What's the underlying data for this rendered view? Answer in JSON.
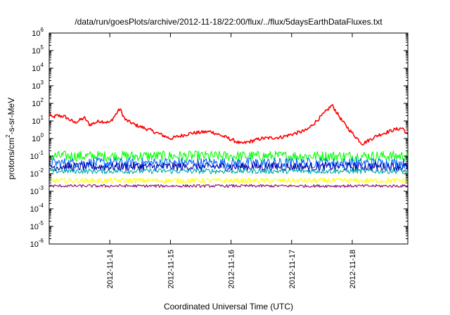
{
  "chart_data": {
    "type": "line",
    "title": "/data/run/goesPlots/archive/2012-11-18/22:00/flux/../flux/5daysEarthDataFluxes.txt",
    "xlabel": "Coordinated Universal Time (UTC)",
    "ylabel": "protons/cm2-s-sr-MeV",
    "ylabel_parts": {
      "pre": "protons/cm",
      "sup": "2",
      "post": "-s-sr-MeV"
    },
    "y_scale": "log",
    "ylim": [
      1e-06,
      1000000.0
    ],
    "y_ticks": [
      {
        "value": 1e-06,
        "base": "10",
        "exp": "-6"
      },
      {
        "value": 1e-05,
        "base": "10",
        "exp": "-5"
      },
      {
        "value": 0.0001,
        "base": "10",
        "exp": "-4"
      },
      {
        "value": 0.001,
        "base": "10",
        "exp": "-3"
      },
      {
        "value": 0.01,
        "base": "10",
        "exp": "-2"
      },
      {
        "value": 0.1,
        "base": "10",
        "exp": "-1"
      },
      {
        "value": 1,
        "base": "10",
        "exp": "0"
      },
      {
        "value": 10.0,
        "base": "10",
        "exp": "1"
      },
      {
        "value": 100.0,
        "base": "10",
        "exp": "2"
      },
      {
        "value": 1000.0,
        "base": "10",
        "exp": "3"
      },
      {
        "value": 10000.0,
        "base": "10",
        "exp": "4"
      },
      {
        "value": 100000.0,
        "base": "10",
        "exp": "5"
      },
      {
        "value": 1000000.0,
        "base": "10",
        "exp": "6"
      }
    ],
    "xlim": [
      "2012-11-13T00:00",
      "2012-11-18T22:00"
    ],
    "x_ticks": [
      "2012-11-14",
      "2012-11-15",
      "2012-11-16",
      "2012-11-17",
      "2012-11-18"
    ],
    "grid": false,
    "series": [
      {
        "color": "#ff0000",
        "noise": 0.1,
        "x": [
          "2012-11-13T00:00",
          "2012-11-13T01:00",
          "2012-11-13T03:00",
          "2012-11-13T06:00",
          "2012-11-13T10:00",
          "2012-11-13T14:00",
          "2012-11-13T16:00",
          "2012-11-13T20:00",
          "2012-11-14T00:00",
          "2012-11-14T04:00",
          "2012-11-14T06:00",
          "2012-11-14T10:00",
          "2012-11-14T16:00",
          "2012-11-15T00:00",
          "2012-11-15T08:00",
          "2012-11-15T16:00",
          "2012-11-16T00:00",
          "2012-11-16T04:00",
          "2012-11-16T12:00",
          "2012-11-16T20:00",
          "2012-11-17T06:00",
          "2012-11-17T12:00",
          "2012-11-17T16:00",
          "2012-11-17T20:00",
          "2012-11-18T00:00",
          "2012-11-18T04:00",
          "2012-11-18T10:00",
          "2012-11-18T16:00",
          "2012-11-18T20:00",
          "2012-11-18T22:00"
        ],
        "y": [
          40,
          15,
          20,
          18,
          8,
          15,
          6,
          10,
          8,
          50,
          12,
          6,
          3,
          1,
          2,
          2.5,
          0.9,
          0.5,
          1,
          1.2,
          3,
          20,
          80,
          10,
          2,
          0.5,
          1.5,
          3,
          4,
          1.5
        ]
      },
      {
        "color": "#00ff00",
        "noise": 0.3,
        "x": [
          "2012-11-13T00:00",
          "2012-11-18T22:00"
        ],
        "y": [
          0.1,
          0.1
        ]
      },
      {
        "color": "#0066ff",
        "noise": 0.3,
        "x": [
          "2012-11-13T00:00",
          "2012-11-18T22:00"
        ],
        "y": [
          0.04,
          0.04
        ]
      },
      {
        "color": "#0000aa",
        "noise": 0.25,
        "x": [
          "2012-11-13T00:00",
          "2012-11-18T22:00"
        ],
        "y": [
          0.025,
          0.025
        ]
      },
      {
        "color": "#00aaaa",
        "noise": 0.15,
        "x": [
          "2012-11-13T00:00",
          "2012-11-18T22:00"
        ],
        "y": [
          0.014,
          0.014
        ]
      },
      {
        "color": "#ffff00",
        "noise": 0.15,
        "x": [
          "2012-11-13T00:00",
          "2012-11-18T22:00"
        ],
        "y": [
          0.004,
          0.004
        ]
      },
      {
        "color": "#880066",
        "noise": 0.08,
        "x": [
          "2012-11-13T00:00",
          "2012-11-18T22:00"
        ],
        "y": [
          0.002,
          0.002
        ]
      }
    ]
  }
}
